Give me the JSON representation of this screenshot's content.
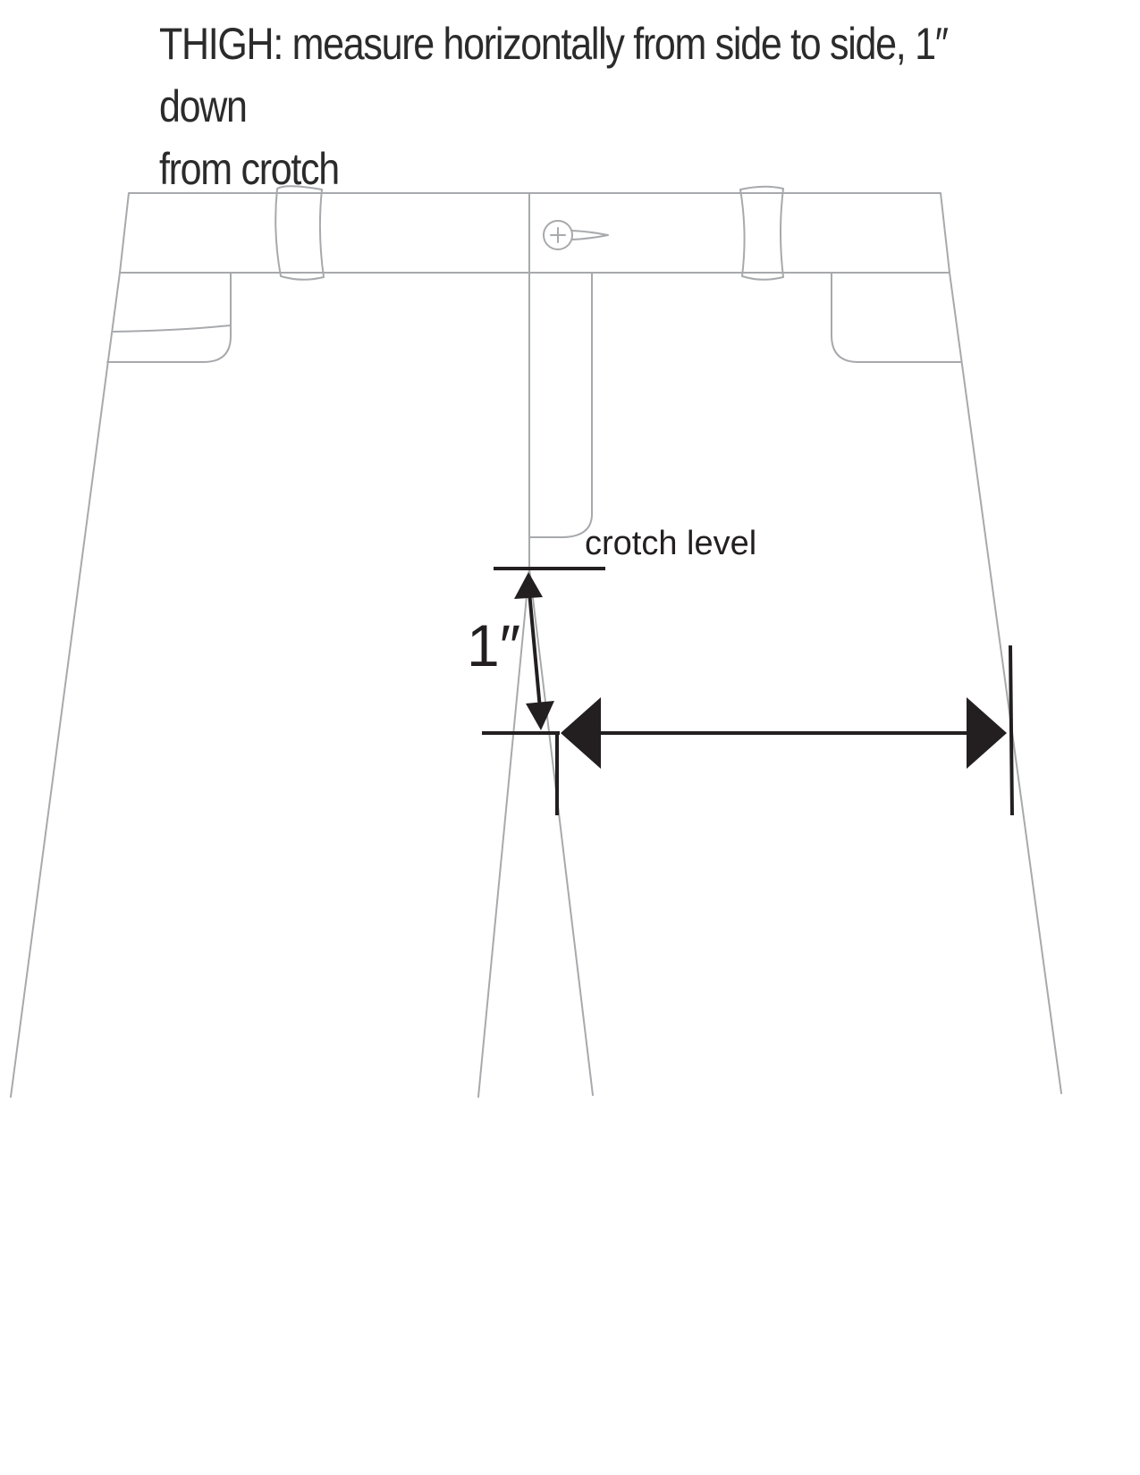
{
  "instruction": {
    "line1": "THIGH:  measure horizontally from side to side, 1″ down",
    "line2": "from crotch"
  },
  "labels": {
    "crotch_level": "crotch level",
    "one_inch": "1″"
  },
  "colors": {
    "garment_outline": "#a7a9ac",
    "measurement": "#231f20"
  }
}
